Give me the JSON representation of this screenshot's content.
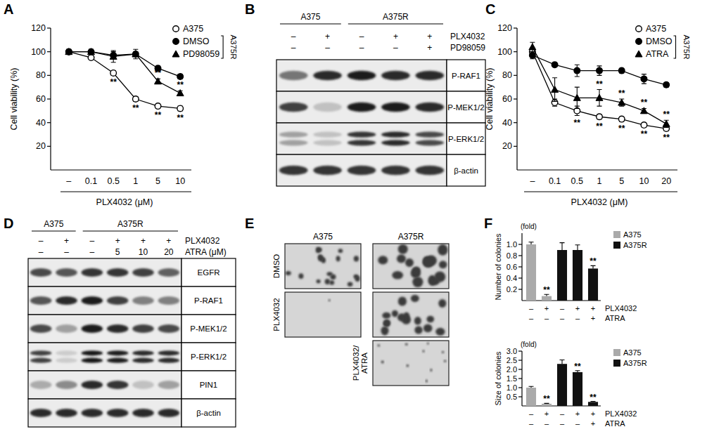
{
  "chart_data": [
    {
      "type": "line",
      "panel_label": "A",
      "x_label": "PLX4032 (μM)",
      "y_label": "Cell viability (%)",
      "categories": [
        "–",
        "0.1",
        "0.5",
        "1",
        "5",
        "10"
      ],
      "ylim": [
        0,
        120
      ],
      "yticks": [
        20,
        40,
        60,
        80,
        100,
        120
      ],
      "grid": false,
      "legend": "top right",
      "legend_group": {
        "label": "A375R",
        "series": [
          1,
          2
        ]
      },
      "series": [
        {
          "name": "A375",
          "color": "#000000",
          "marker": "open_circle",
          "values": [
            100,
            95,
            82,
            60,
            54,
            52
          ],
          "errors": [
            1,
            1,
            2,
            2,
            2,
            2
          ]
        },
        {
          "name": "DMSO",
          "color": "#000000",
          "marker": "circle",
          "values": [
            100,
            100,
            97,
            98,
            86,
            79
          ],
          "errors": [
            2,
            2,
            3,
            2,
            2,
            2
          ]
        },
        {
          "name": "PD98059",
          "color": "#000000",
          "marker": "triangle",
          "values": [
            100,
            100,
            96,
            98,
            75,
            65
          ],
          "errors": [
            2,
            2,
            5,
            4,
            2,
            2
          ]
        }
      ],
      "annotations": [
        {
          "text": "**",
          "series": 0,
          "index": 2
        },
        {
          "text": "**",
          "series": 0,
          "index": 3
        },
        {
          "text": "**",
          "series": 0,
          "index": 4
        },
        {
          "text": "**",
          "series": 0,
          "index": 5
        },
        {
          "text": "**",
          "series": 2,
          "index": 4
        },
        {
          "text": "**",
          "series": 2,
          "index": 5
        }
      ]
    },
    {
      "type": "line",
      "panel_label": "C",
      "x_label": "PLX4032 (μM)",
      "y_label": "Cell viability (%)",
      "categories": [
        "–",
        "0.1",
        "0.5",
        "1",
        "5",
        "10",
        "20"
      ],
      "ylim": [
        0,
        120
      ],
      "yticks": [
        20,
        40,
        60,
        80,
        100,
        120
      ],
      "grid": false,
      "legend": "top right",
      "legend_group": {
        "label": "A375R",
        "series": [
          1,
          2
        ]
      },
      "series": [
        {
          "name": "A375",
          "color": "#000000",
          "marker": "open_circle",
          "values": [
            100,
            57,
            50,
            45,
            43,
            38,
            35
          ],
          "errors": [
            3,
            3,
            4,
            2,
            2,
            2,
            2
          ]
        },
        {
          "name": "DMSO",
          "color": "#000000",
          "marker": "circle",
          "values": [
            97,
            89,
            84,
            84,
            84,
            77,
            72
          ],
          "errors": [
            3,
            2,
            5,
            4,
            2,
            4,
            2
          ]
        },
        {
          "name": "ATRA",
          "color": "#000000",
          "marker": "triangle",
          "values": [
            104,
            68,
            61,
            61,
            57,
            50,
            39
          ],
          "errors": [
            4,
            10,
            9,
            7,
            3,
            2,
            3
          ]
        }
      ],
      "annotations": [
        {
          "text": "**",
          "series": 0,
          "index": 2
        },
        {
          "text": "**",
          "series": 0,
          "index": 3
        },
        {
          "text": "**",
          "series": 0,
          "index": 4
        },
        {
          "text": "**",
          "series": 0,
          "index": 5
        },
        {
          "text": "**",
          "series": 0,
          "index": 6
        },
        {
          "text": "**",
          "series": 2,
          "index": 3
        },
        {
          "text": "**",
          "series": 2,
          "index": 4
        },
        {
          "text": "**",
          "series": 2,
          "index": 5
        },
        {
          "text": "**",
          "series": 2,
          "index": 6
        }
      ]
    },
    {
      "type": "bar",
      "panel_label": "F",
      "y_label": "Number of colonies",
      "y_unit_label": "(fold)",
      "categories": [
        null,
        null,
        null,
        null,
        null
      ],
      "ylim": [
        0,
        1.2
      ],
      "yticks": [
        0.2,
        0.4,
        0.6,
        0.8,
        {
          "value": 1,
          "label": "1.0"
        }
      ],
      "grid": false,
      "legend": "top right",
      "series": [
        {
          "name": "A375",
          "color": "#aaaaaa",
          "values": [
            1.0,
            0.08,
            null,
            null,
            null
          ],
          "errors": [
            0.04,
            0.03,
            null,
            null,
            null
          ]
        },
        {
          "name": "A375R",
          "color": "#111111",
          "values": [
            null,
            null,
            0.9,
            0.9,
            0.57
          ],
          "errors": [
            null,
            null,
            0.13,
            0.09,
            0.05
          ]
        }
      ],
      "treatments": [
        {
          "label": "PLX4032",
          "values": [
            "–",
            "+",
            "–",
            "+",
            "+"
          ]
        },
        {
          "label": "ATRA",
          "values": [
            "–",
            "–",
            "–",
            "–",
            "+"
          ]
        }
      ],
      "annotations": [
        {
          "text": "**",
          "series": 0,
          "index": 1
        },
        {
          "text": "**",
          "series": 1,
          "index": 4
        }
      ]
    },
    {
      "type": "bar",
      "y_label": "Size of colonies",
      "y_unit_label": "(fold)",
      "categories": [
        null,
        null,
        null,
        null,
        null
      ],
      "ylim": [
        0,
        3
      ],
      "yticks": [
        0.5,
        {
          "value": 1,
          "label": "1.0"
        },
        1.5,
        {
          "value": 2,
          "label": "2.0"
        },
        2.5,
        {
          "value": 3,
          "label": "3.0"
        }
      ],
      "grid": false,
      "legend": "top right",
      "series": [
        {
          "name": "A375",
          "color": "#aaaaaa",
          "values": [
            1.0,
            0.12,
            null,
            null,
            null
          ],
          "errors": [
            0.07,
            0.02,
            null,
            null,
            null
          ]
        },
        {
          "name": "A375R",
          "color": "#111111",
          "values": [
            null,
            null,
            2.3,
            1.85,
            0.22
          ],
          "errors": [
            null,
            null,
            0.22,
            0.08,
            0.03
          ]
        }
      ],
      "treatments": [
        {
          "label": "PLX4032",
          "values": [
            "–",
            "+",
            "–",
            "+",
            "+"
          ]
        },
        {
          "label": "ATRA",
          "values": [
            "–",
            "–",
            "–",
            "–",
            "+"
          ]
        }
      ],
      "annotations": [
        {
          "text": "**",
          "series": 0,
          "index": 1
        },
        {
          "text": "**",
          "series": 1,
          "index": 3
        },
        {
          "text": "**",
          "series": 1,
          "index": 4
        }
      ]
    }
  ],
  "blots": [
    {
      "panel_label": "B",
      "groups": [
        {
          "label": "A375",
          "lanes": 2
        },
        {
          "label": "A375R",
          "lanes": 3
        }
      ],
      "treatments": [
        {
          "label": "PLX4032",
          "values": [
            "–",
            "+",
            "–",
            "+",
            "+"
          ]
        },
        {
          "label": "PD98059",
          "values": [
            "–",
            "–",
            "–",
            "–",
            "+"
          ]
        }
      ],
      "bands": [
        {
          "label": "P-RAF1",
          "intensity": [
            0.55,
            0.9,
            0.95,
            0.9,
            0.9
          ]
        },
        {
          "label": "P-MEK1/2",
          "intensity": [
            0.8,
            0.2,
            0.95,
            0.95,
            0.9
          ]
        },
        {
          "label": "P-ERK1/2",
          "intensity": [
            0.35,
            0.2,
            0.85,
            0.9,
            0.75
          ],
          "doublet": true
        },
        {
          "label": "β-actin",
          "intensity": [
            0.85,
            0.85,
            0.85,
            0.85,
            0.85
          ]
        }
      ]
    },
    {
      "panel_label": "D",
      "groups": [
        {
          "label": "A375",
          "lanes": 2
        },
        {
          "label": "A375R",
          "lanes": 4
        }
      ],
      "treatments": [
        {
          "label": "PLX4032",
          "values": [
            "–",
            "+",
            "–",
            "+",
            "+",
            "+"
          ]
        },
        {
          "label": "ATRA (μM)",
          "values": [
            "–",
            "–",
            "–",
            "5",
            "10",
            "20"
          ]
        }
      ],
      "bands": [
        {
          "label": "EGFR",
          "intensity": [
            0.75,
            0.7,
            0.85,
            0.85,
            0.8,
            0.65
          ]
        },
        {
          "label": "P-RAF1",
          "intensity": [
            0.7,
            0.9,
            0.95,
            0.8,
            0.5,
            0.5
          ]
        },
        {
          "label": "P-MEK1/2",
          "intensity": [
            0.75,
            0.35,
            0.95,
            0.9,
            0.8,
            0.75
          ]
        },
        {
          "label": "P-ERK1/2",
          "intensity": [
            0.8,
            0.15,
            1.0,
            0.95,
            0.9,
            0.9
          ],
          "doublet": true
        },
        {
          "label": "PIN1",
          "intensity": [
            0.3,
            0.45,
            0.9,
            0.85,
            0.2,
            0.35
          ]
        },
        {
          "label": "β-actin",
          "intensity": [
            0.9,
            0.9,
            0.9,
            0.9,
            0.9,
            0.9
          ]
        }
      ]
    }
  ],
  "colonies": {
    "panel_label": "E",
    "columns": [
      "A375",
      "A375R"
    ],
    "rows": [
      {
        "label": [
          "DMSO"
        ],
        "present": [
          true,
          true
        ]
      },
      {
        "label": [
          "PLX4032"
        ],
        "present": [
          true,
          true
        ]
      },
      {
        "label": [
          "PLX4032/",
          "ATRA"
        ],
        "present": [
          false,
          true
        ]
      }
    ]
  }
}
